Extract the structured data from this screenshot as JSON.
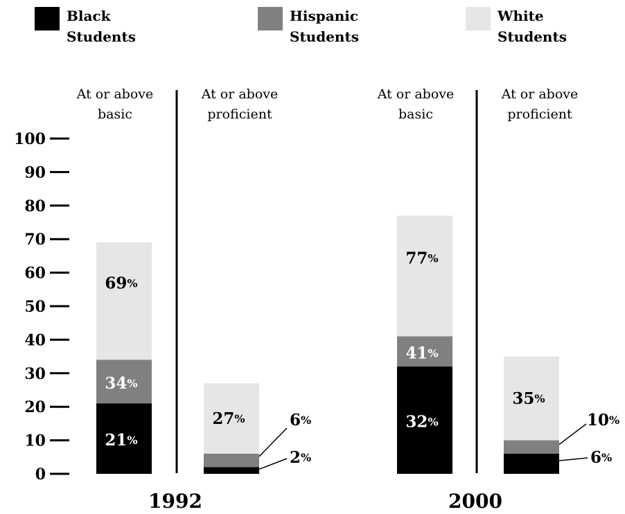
{
  "chart_data": {
    "type": "bar",
    "stacked": true,
    "ylim": [
      0,
      100
    ],
    "yticks": [
      "0",
      "10",
      "20",
      "30",
      "40",
      "50",
      "60",
      "70",
      "80",
      "90",
      "100"
    ],
    "legend": [
      {
        "key": "black",
        "line1": "Black",
        "line2": "Students",
        "color": "#000000"
      },
      {
        "key": "hispanic",
        "line1": "Hispanic",
        "line2": "Students",
        "color": "#808080"
      },
      {
        "key": "white",
        "line1": "White",
        "line2": "Students",
        "color": "#e6e6e6"
      }
    ],
    "panels": [
      {
        "year": "1992",
        "columns": [
          {
            "subtitle1": "At or above",
            "subtitle2": "basic",
            "values": {
              "black": 21,
              "hispanic": 34,
              "white": 69
            },
            "labels": {
              "black": "21",
              "hispanic": "34",
              "white": "69"
            }
          },
          {
            "subtitle1": "At or above",
            "subtitle2": "proficient",
            "values": {
              "black": 2,
              "hispanic": 6,
              "white": 27
            },
            "labels": {
              "black": "2",
              "hispanic": "6",
              "white": "27"
            }
          }
        ]
      },
      {
        "year": "2000",
        "columns": [
          {
            "subtitle1": "At or above",
            "subtitle2": "basic",
            "values": {
              "black": 32,
              "hispanic": 41,
              "white": 77
            },
            "labels": {
              "black": "32",
              "hispanic": "41",
              "white": "77"
            }
          },
          {
            "subtitle1": "At or above",
            "subtitle2": "proficient",
            "values": {
              "black": 6,
              "hispanic": 10,
              "white": 35
            },
            "labels": {
              "black": "6",
              "hispanic": "10",
              "white": "35"
            }
          }
        ]
      }
    ],
    "percent_sign": "%"
  }
}
